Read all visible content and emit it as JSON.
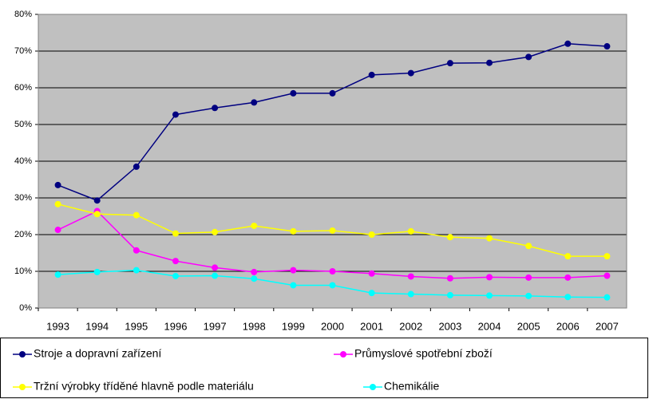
{
  "chart_data": {
    "type": "line",
    "categories": [
      "1993",
      "1994",
      "1995",
      "1996",
      "1997",
      "1998",
      "1999",
      "2000",
      "2001",
      "2002",
      "2003",
      "2004",
      "2005",
      "2006",
      "2007"
    ],
    "series": [
      {
        "name": "Stroje a dopravní zařízení",
        "color": "#000080",
        "values": [
          33.5,
          29.3,
          38.5,
          52.7,
          54.5,
          56,
          58.5,
          58.5,
          63.5,
          64,
          66.7,
          66.8,
          68.4,
          72,
          71.3
        ]
      },
      {
        "name": "Průmyslové spotřební zboží",
        "color": "#ff00ff",
        "values": [
          21.3,
          26.4,
          15.7,
          12.8,
          11,
          9.8,
          10.3,
          10,
          9.4,
          8.6,
          8.1,
          8.4,
          8.3,
          8.3,
          8.8
        ]
      },
      {
        "name": "Tržní výrobky tříděné hlavně podle materiálu",
        "color": "#ffff00",
        "values": [
          28.3,
          25.6,
          25.3,
          20.3,
          20.7,
          22.4,
          20.9,
          21.1,
          20,
          20.9,
          19.3,
          19,
          16.9,
          14.1,
          14.1
        ]
      },
      {
        "name": "Chemikálie",
        "color": "#00ffff",
        "values": [
          9.1,
          9.8,
          10.3,
          8.7,
          8.8,
          8,
          6.2,
          6.2,
          4.1,
          3.8,
          3.5,
          3.4,
          3.3,
          3,
          2.9
        ]
      }
    ],
    "ylim": [
      0,
      80
    ],
    "yticks": [
      {
        "value": 0,
        "label": "0%"
      },
      {
        "value": 10,
        "label": "10%"
      },
      {
        "value": 20,
        "label": "20%"
      },
      {
        "value": 30,
        "label": "30%"
      },
      {
        "value": 40,
        "label": "40%"
      },
      {
        "value": 50,
        "label": "50%"
      },
      {
        "value": 60,
        "label": "60%"
      },
      {
        "value": 70,
        "label": "70%"
      },
      {
        "value": 80,
        "label": "80%"
      }
    ],
    "grid": true,
    "legend": "bottom"
  }
}
